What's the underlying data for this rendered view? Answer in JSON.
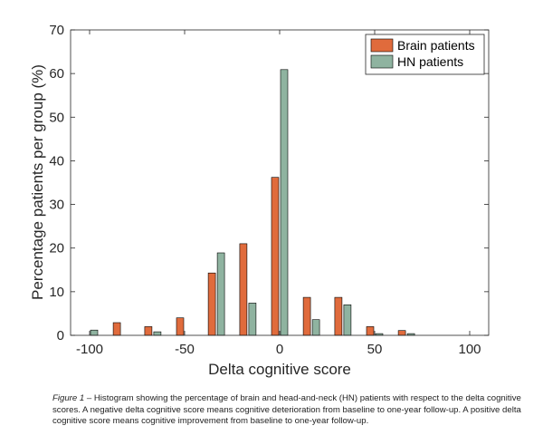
{
  "chart_data": {
    "type": "bar",
    "xlabel": "Delta cognitive score",
    "ylabel": "Percentage patients per group (%)",
    "xlim": [
      -110,
      110
    ],
    "ylim": [
      0,
      70
    ],
    "xticks": [
      -100,
      -50,
      0,
      50,
      100
    ],
    "yticks": [
      0,
      10,
      20,
      30,
      40,
      50,
      60,
      70
    ],
    "grid": false,
    "legend_position": "top-right",
    "x": [
      -100,
      -83.3,
      -66.7,
      -50,
      -33.3,
      -16.7,
      0,
      16.7,
      33.3,
      50,
      66.7
    ],
    "series": [
      {
        "name": "Brain patients",
        "color": "#e06b3c",
        "values": [
          0,
          2.9,
          2.0,
          4.0,
          14.3,
          21.0,
          36.2,
          8.7,
          8.7,
          2.0,
          1.1
        ]
      },
      {
        "name": "HN patients",
        "color": "#8fb3a0",
        "values": [
          1.2,
          0,
          0.8,
          0,
          18.9,
          7.4,
          60.9,
          3.6,
          7.0,
          0.4,
          0.4
        ]
      }
    ]
  },
  "caption": {
    "lead": "Figure 1",
    "text": " – Histogram showing the percentage of brain and head-and-neck (HN) patients with respect to the delta cognitive scores. A negative delta cognitive score means cognitive deterioration from baseline to one-year follow-up. A positive delta cognitive score means cognitive improvement from baseline to one-year follow-up."
  }
}
